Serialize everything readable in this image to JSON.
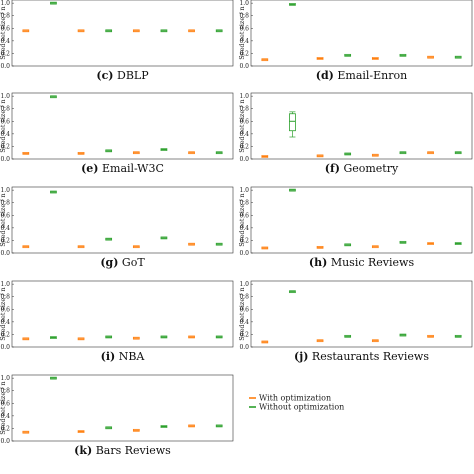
{
  "colors": {
    "with": "#ff7f0e",
    "without": "#2ca02c"
  },
  "legend": {
    "with_label": "With optimization",
    "without_label": "Without optimization"
  },
  "chart_data": [
    {
      "type": "box",
      "panel_letter": "(c)",
      "title": "DBLP",
      "ylabel": "Seed set size / n",
      "yticks": [
        "0.0",
        "0.2",
        "0.4",
        "0.6",
        "0.8",
        "1.0"
      ],
      "ylim": [
        0,
        1.05
      ],
      "groups": 4,
      "series": [
        {
          "name": "With optimization",
          "values": [
            0.56,
            0.56,
            0.56,
            0.56
          ]
        },
        {
          "name": "Without optimization",
          "values": [
            1.0,
            0.56,
            0.56,
            0.56
          ]
        }
      ]
    },
    {
      "type": "box",
      "panel_letter": "(d)",
      "title": "Email-Enron",
      "ylabel": "Seed set size / n",
      "yticks": [
        "0.0",
        "0.2",
        "0.4",
        "0.6",
        "0.8",
        "1.0"
      ],
      "ylim": [
        0,
        1.05
      ],
      "groups": 4,
      "series": [
        {
          "name": "With optimization",
          "values": [
            0.1,
            0.12,
            0.12,
            0.14
          ]
        },
        {
          "name": "Without optimization",
          "values": [
            0.98,
            0.17,
            0.17,
            0.14
          ]
        }
      ]
    },
    {
      "type": "box",
      "panel_letter": "(e)",
      "title": "Email-W3C",
      "ylabel": "Seed set size / n",
      "yticks": [
        "0.0",
        "0.2",
        "0.4",
        "0.6",
        "0.8",
        "1.0"
      ],
      "ylim": [
        0,
        1.05
      ],
      "groups": 4,
      "series": [
        {
          "name": "With optimization",
          "values": [
            0.09,
            0.09,
            0.1,
            0.1
          ]
        },
        {
          "name": "Without optimization",
          "values": [
            0.99,
            0.13,
            0.15,
            0.1
          ]
        }
      ]
    },
    {
      "type": "box",
      "panel_letter": "(f)",
      "title": "Geometry",
      "ylabel": "Seed set size / n",
      "yticks": [
        "0.0",
        "0.2",
        "0.4",
        "0.6",
        "0.8",
        "1.0"
      ],
      "ylim": [
        0,
        1.05
      ],
      "groups": 4,
      "series": [
        {
          "name": "With optimization",
          "values": [
            0.04,
            0.05,
            0.06,
            0.1
          ]
        },
        {
          "name": "Without optimization",
          "values": [
            0.6,
            0.08,
            0.1,
            0.1
          ],
          "box": [
            0.45,
            0.72
          ],
          "whisker": [
            0.35,
            0.75
          ]
        }
      ]
    },
    {
      "type": "box",
      "panel_letter": "(g)",
      "title": "GoT",
      "ylabel": "Seed set size / n",
      "yticks": [
        "0.0",
        "0.2",
        "0.4",
        "0.6",
        "0.8",
        "1.0"
      ],
      "ylim": [
        0,
        1.05
      ],
      "groups": 4,
      "series": [
        {
          "name": "With optimization",
          "values": [
            0.1,
            0.1,
            0.1,
            0.14
          ]
        },
        {
          "name": "Without optimization",
          "values": [
            0.97,
            0.22,
            0.24,
            0.14
          ]
        }
      ]
    },
    {
      "type": "box",
      "panel_letter": "(h)",
      "title": "Music Reviews",
      "ylabel": "Seed set size / n",
      "yticks": [
        "0.0",
        "0.2",
        "0.4",
        "0.6",
        "0.8",
        "1.0"
      ],
      "ylim": [
        0,
        1.05
      ],
      "groups": 4,
      "series": [
        {
          "name": "With optimization",
          "values": [
            0.08,
            0.09,
            0.1,
            0.15
          ]
        },
        {
          "name": "Without optimization",
          "values": [
            1.0,
            0.13,
            0.17,
            0.15
          ]
        }
      ]
    },
    {
      "type": "box",
      "panel_letter": "(i)",
      "title": "NBA",
      "ylabel": "Seed set size / n",
      "yticks": [
        "0.0",
        "0.2",
        "0.4",
        "0.6",
        "0.8",
        "1.0"
      ],
      "ylim": [
        0,
        1.05
      ],
      "groups": 4,
      "series": [
        {
          "name": "With optimization",
          "values": [
            0.13,
            0.13,
            0.14,
            0.16
          ]
        },
        {
          "name": "Without optimization",
          "values": [
            0.15,
            0.16,
            0.16,
            0.16
          ]
        }
      ]
    },
    {
      "type": "box",
      "panel_letter": "(j)",
      "title": "Restaurants Reviews",
      "ylabel": "Seed set size / n",
      "yticks": [
        "0.0",
        "0.2",
        "0.4",
        "0.6",
        "0.8",
        "1.0"
      ],
      "ylim": [
        0,
        1.05
      ],
      "groups": 4,
      "series": [
        {
          "name": "With optimization",
          "values": [
            0.08,
            0.1,
            0.1,
            0.17
          ]
        },
        {
          "name": "Without optimization",
          "values": [
            0.88,
            0.17,
            0.19,
            0.17
          ]
        }
      ]
    },
    {
      "type": "box",
      "panel_letter": "(k)",
      "title": "Bars Reviews",
      "ylabel": "Seed set size / n",
      "yticks": [
        "0.0",
        "0.2",
        "0.4",
        "0.6",
        "0.8",
        "1.0"
      ],
      "ylim": [
        0,
        1.05
      ],
      "groups": 4,
      "series": [
        {
          "name": "With optimization",
          "values": [
            0.14,
            0.15,
            0.17,
            0.24
          ]
        },
        {
          "name": "Without optimization",
          "values": [
            1.0,
            0.21,
            0.23,
            0.24
          ]
        }
      ]
    }
  ]
}
